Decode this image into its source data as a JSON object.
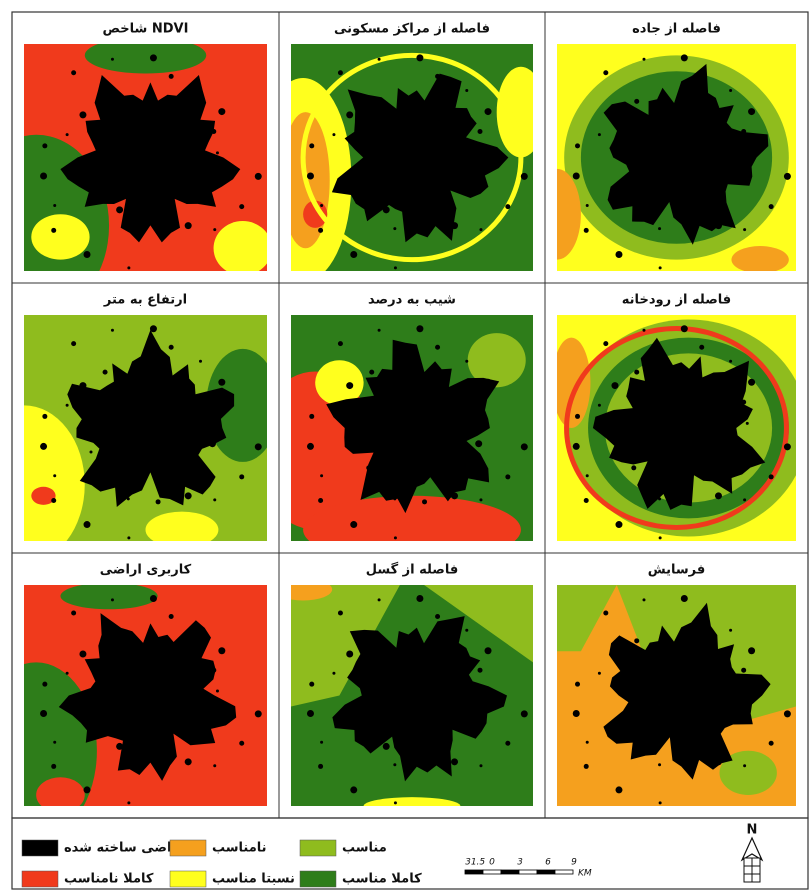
{
  "panels": [
    {
      "title": "شاخص NDVI"
    },
    {
      "title": "فاصله از مراکز مسکونی"
    },
    {
      "title": "فاصله از جاده"
    },
    {
      "title": "ارتفاع به متر"
    },
    {
      "title": "شیب به درصد"
    },
    {
      "title": "فاصله از رودخانه"
    },
    {
      "title": "کاربری اراضی"
    },
    {
      "title": "فاصله از گسل"
    },
    {
      "title": "فرسایش"
    }
  ],
  "legend": [
    {
      "label": "اراضی ساخته شده",
      "color": "#000000"
    },
    {
      "label": "کاملا نامناسب",
      "color": "#f03a1c"
    },
    {
      "label": "نامناسب",
      "color": "#f5a01e"
    },
    {
      "label": "نسبتا مناسب",
      "color": "#ffff1e"
    },
    {
      "label": "مناسب",
      "color": "#8fbc1e"
    },
    {
      "label": "کاملا مناسب",
      "color": "#2e7d1a"
    }
  ],
  "scale_bar": {
    "labels": [
      "3",
      "1.5",
      "0",
      "3",
      "6",
      "9"
    ],
    "unit": "KM"
  },
  "north": "N"
}
